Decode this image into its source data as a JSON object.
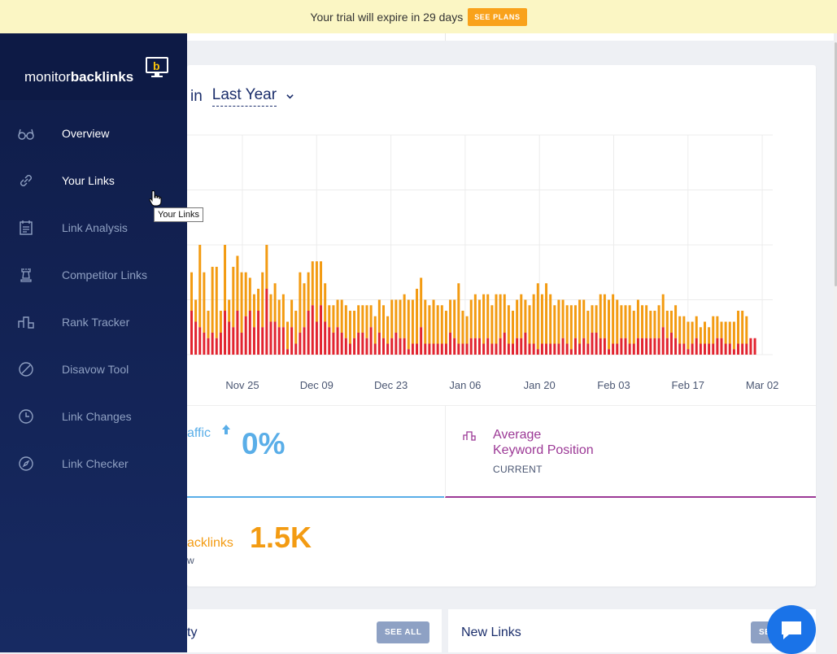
{
  "trial": {
    "message": "Your trial will expire in 29 days",
    "button": "SEE PLANS"
  },
  "brand": {
    "name_light": "monitor",
    "name_bold": "backlinks"
  },
  "nav": [
    {
      "label": "Overview",
      "icon": "glasses-icon",
      "active": true
    },
    {
      "label": "Your Links",
      "icon": "link-icon",
      "hover": true
    },
    {
      "label": "Link Analysis",
      "icon": "calendar-list-icon"
    },
    {
      "label": "Competitor Links",
      "icon": "chess-rook-icon"
    },
    {
      "label": "Rank Tracker",
      "icon": "bar-ranking-icon"
    },
    {
      "label": "Disavow Tool",
      "icon": "prohibited-icon"
    },
    {
      "label": "Link Changes",
      "icon": "clock-icon"
    },
    {
      "label": "Link Checker",
      "icon": "compass-icon"
    }
  ],
  "tooltip": "Your Links",
  "chart_header": {
    "prefix": "in",
    "period": "Last Year"
  },
  "chart_data": {
    "type": "bar",
    "stacked": true,
    "x_tick_labels": [
      "Nov 25",
      "Dec 09",
      "Dec 23",
      "Jan 06",
      "Jan 20",
      "Feb 03",
      "Feb 17",
      "Mar 02"
    ],
    "ylim": [
      0,
      4
    ],
    "grid": true,
    "series": [
      {
        "color": "#e2242f",
        "values": [
          0.8,
          0.6,
          0.5,
          0.4,
          0.3,
          0.4,
          0.3,
          0.4,
          0.8,
          0.6,
          0.5,
          0.8,
          0.4,
          0.7,
          0.8,
          0.5,
          0.8,
          0.5,
          1.2,
          0.6,
          0.6,
          0.5,
          0.5,
          0.1,
          0.5,
          0.2,
          0.4,
          0.5,
          0.8,
          0.9,
          0.6,
          0.9,
          0.6,
          0.5,
          0.4,
          0.5,
          0.4,
          0.3,
          0.2,
          0.3,
          0.4,
          0.4,
          0.3,
          0.5,
          0.2,
          0.4,
          0.3,
          0.2,
          0.3,
          0.4,
          0.3,
          0.3,
          0.1,
          0.2,
          0.2,
          0.5,
          0.2,
          0.2,
          0.2,
          0.2,
          0.2,
          0.2,
          0.4,
          0.3,
          0.2,
          0.2,
          0.2,
          0.3,
          0.3,
          0.3,
          0.2,
          0.3,
          0.2,
          0.2,
          0.3,
          0.4,
          0.2,
          0.2,
          0.3,
          0.3,
          0.4,
          0.2,
          0.2,
          0.1,
          0.2,
          0.2,
          0.2,
          0.2,
          0.2,
          0.3,
          0.2,
          0.1,
          0.3,
          0.2,
          0.3,
          0.2,
          0.4,
          0.4,
          0.3,
          0.3,
          0.1,
          0.2,
          0.2,
          0.3,
          0.3,
          0.2,
          0.2,
          0.3,
          0.3,
          0.3,
          0.3,
          0.3,
          0.3,
          0.5,
          0.3,
          0.4,
          0.3,
          0.2,
          0.2,
          0.1,
          0.2,
          0.3,
          0.2,
          0.2,
          0.2,
          0.2,
          0.3,
          0.3,
          0.2,
          0.2,
          0.1,
          0.2,
          0.2,
          0.2,
          0.3,
          0.3
        ]
      },
      {
        "color": "#f39b12",
        "values": [
          0.7,
          0.4,
          1.5,
          1.1,
          0.5,
          1.2,
          1.3,
          0.4,
          1.2,
          0.4,
          1.1,
          1.0,
          1.1,
          0.8,
          0.6,
          0.6,
          0.4,
          1.0,
          0.8,
          0.5,
          0.7,
          0.5,
          0.6,
          0.5,
          0.5,
          0.6,
          1.1,
          0.8,
          0.7,
          0.8,
          1.1,
          0.8,
          0.7,
          0.4,
          0.5,
          0.5,
          0.6,
          0.6,
          0.6,
          0.5,
          0.5,
          0.5,
          0.6,
          0.4,
          0.5,
          0.6,
          0.6,
          0.5,
          0.7,
          0.6,
          0.7,
          0.8,
          0.9,
          0.8,
          1.0,
          0.9,
          0.8,
          0.7,
          0.8,
          0.7,
          0.7,
          0.6,
          0.6,
          0.7,
          1.1,
          0.6,
          0.5,
          0.7,
          0.8,
          0.7,
          0.9,
          0.8,
          0.7,
          0.9,
          0.8,
          0.7,
          0.7,
          0.6,
          0.7,
          0.8,
          0.6,
          0.7,
          0.9,
          1.2,
          0.9,
          1.1,
          0.9,
          0.7,
          0.8,
          0.7,
          0.7,
          0.8,
          0.6,
          0.8,
          0.7,
          0.6,
          0.5,
          0.5,
          0.8,
          0.8,
          0.9,
          0.9,
          0.8,
          0.6,
          0.6,
          0.7,
          0.6,
          0.7,
          0.6,
          0.6,
          0.5,
          0.5,
          0.6,
          0.6,
          0.5,
          0.4,
          0.6,
          0.5,
          0.5,
          0.5,
          0.4,
          0.4,
          0.3,
          0.4,
          0.3,
          0.5,
          0.4,
          0.3,
          0.4,
          0.4,
          0.5,
          0.6,
          0.6,
          0.5
        ]
      }
    ]
  },
  "stats": {
    "traffic": {
      "label": "affic",
      "value": "0%"
    },
    "keyword": {
      "title_1": "Average",
      "title_2": "Keyword Position",
      "sub": "CURRENT"
    },
    "backlinks": {
      "label": "acklinks",
      "value": "1.5K",
      "sub": "w"
    }
  },
  "bottom": {
    "left": {
      "title": "ty",
      "button": "SEE ALL"
    },
    "right": {
      "title": "New Links",
      "button": "SE"
    }
  }
}
